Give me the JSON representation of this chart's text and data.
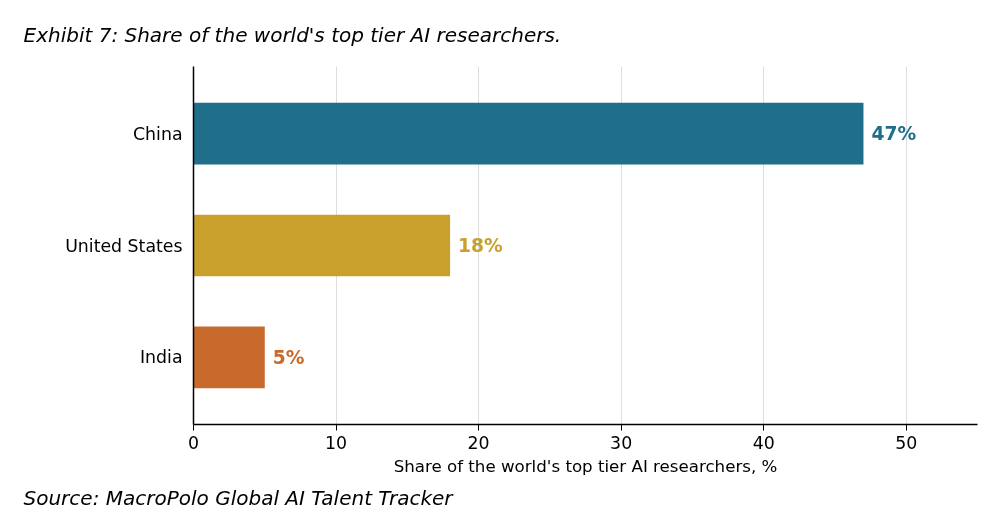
{
  "chart_data": {
    "type": "bar",
    "orientation": "horizontal",
    "title": "Exhibit 7: Share of the world's top tier AI researchers.",
    "xlabel": "Share of the world's top tier AI researchers, %",
    "categories": [
      "China",
      "United States",
      "India"
    ],
    "values": [
      47,
      18,
      5
    ],
    "colors": [
      "#1f6f8b",
      "#c9a02b",
      "#c86a2c"
    ],
    "value_labels": [
      "47%",
      "18%",
      "5%"
    ],
    "xlim": [
      0,
      55
    ],
    "xticks": [
      0,
      10,
      20,
      30,
      40,
      50
    ],
    "grid": "x",
    "annotations": [
      "Source: MacroPolo Global AI Talent Tracker"
    ]
  }
}
